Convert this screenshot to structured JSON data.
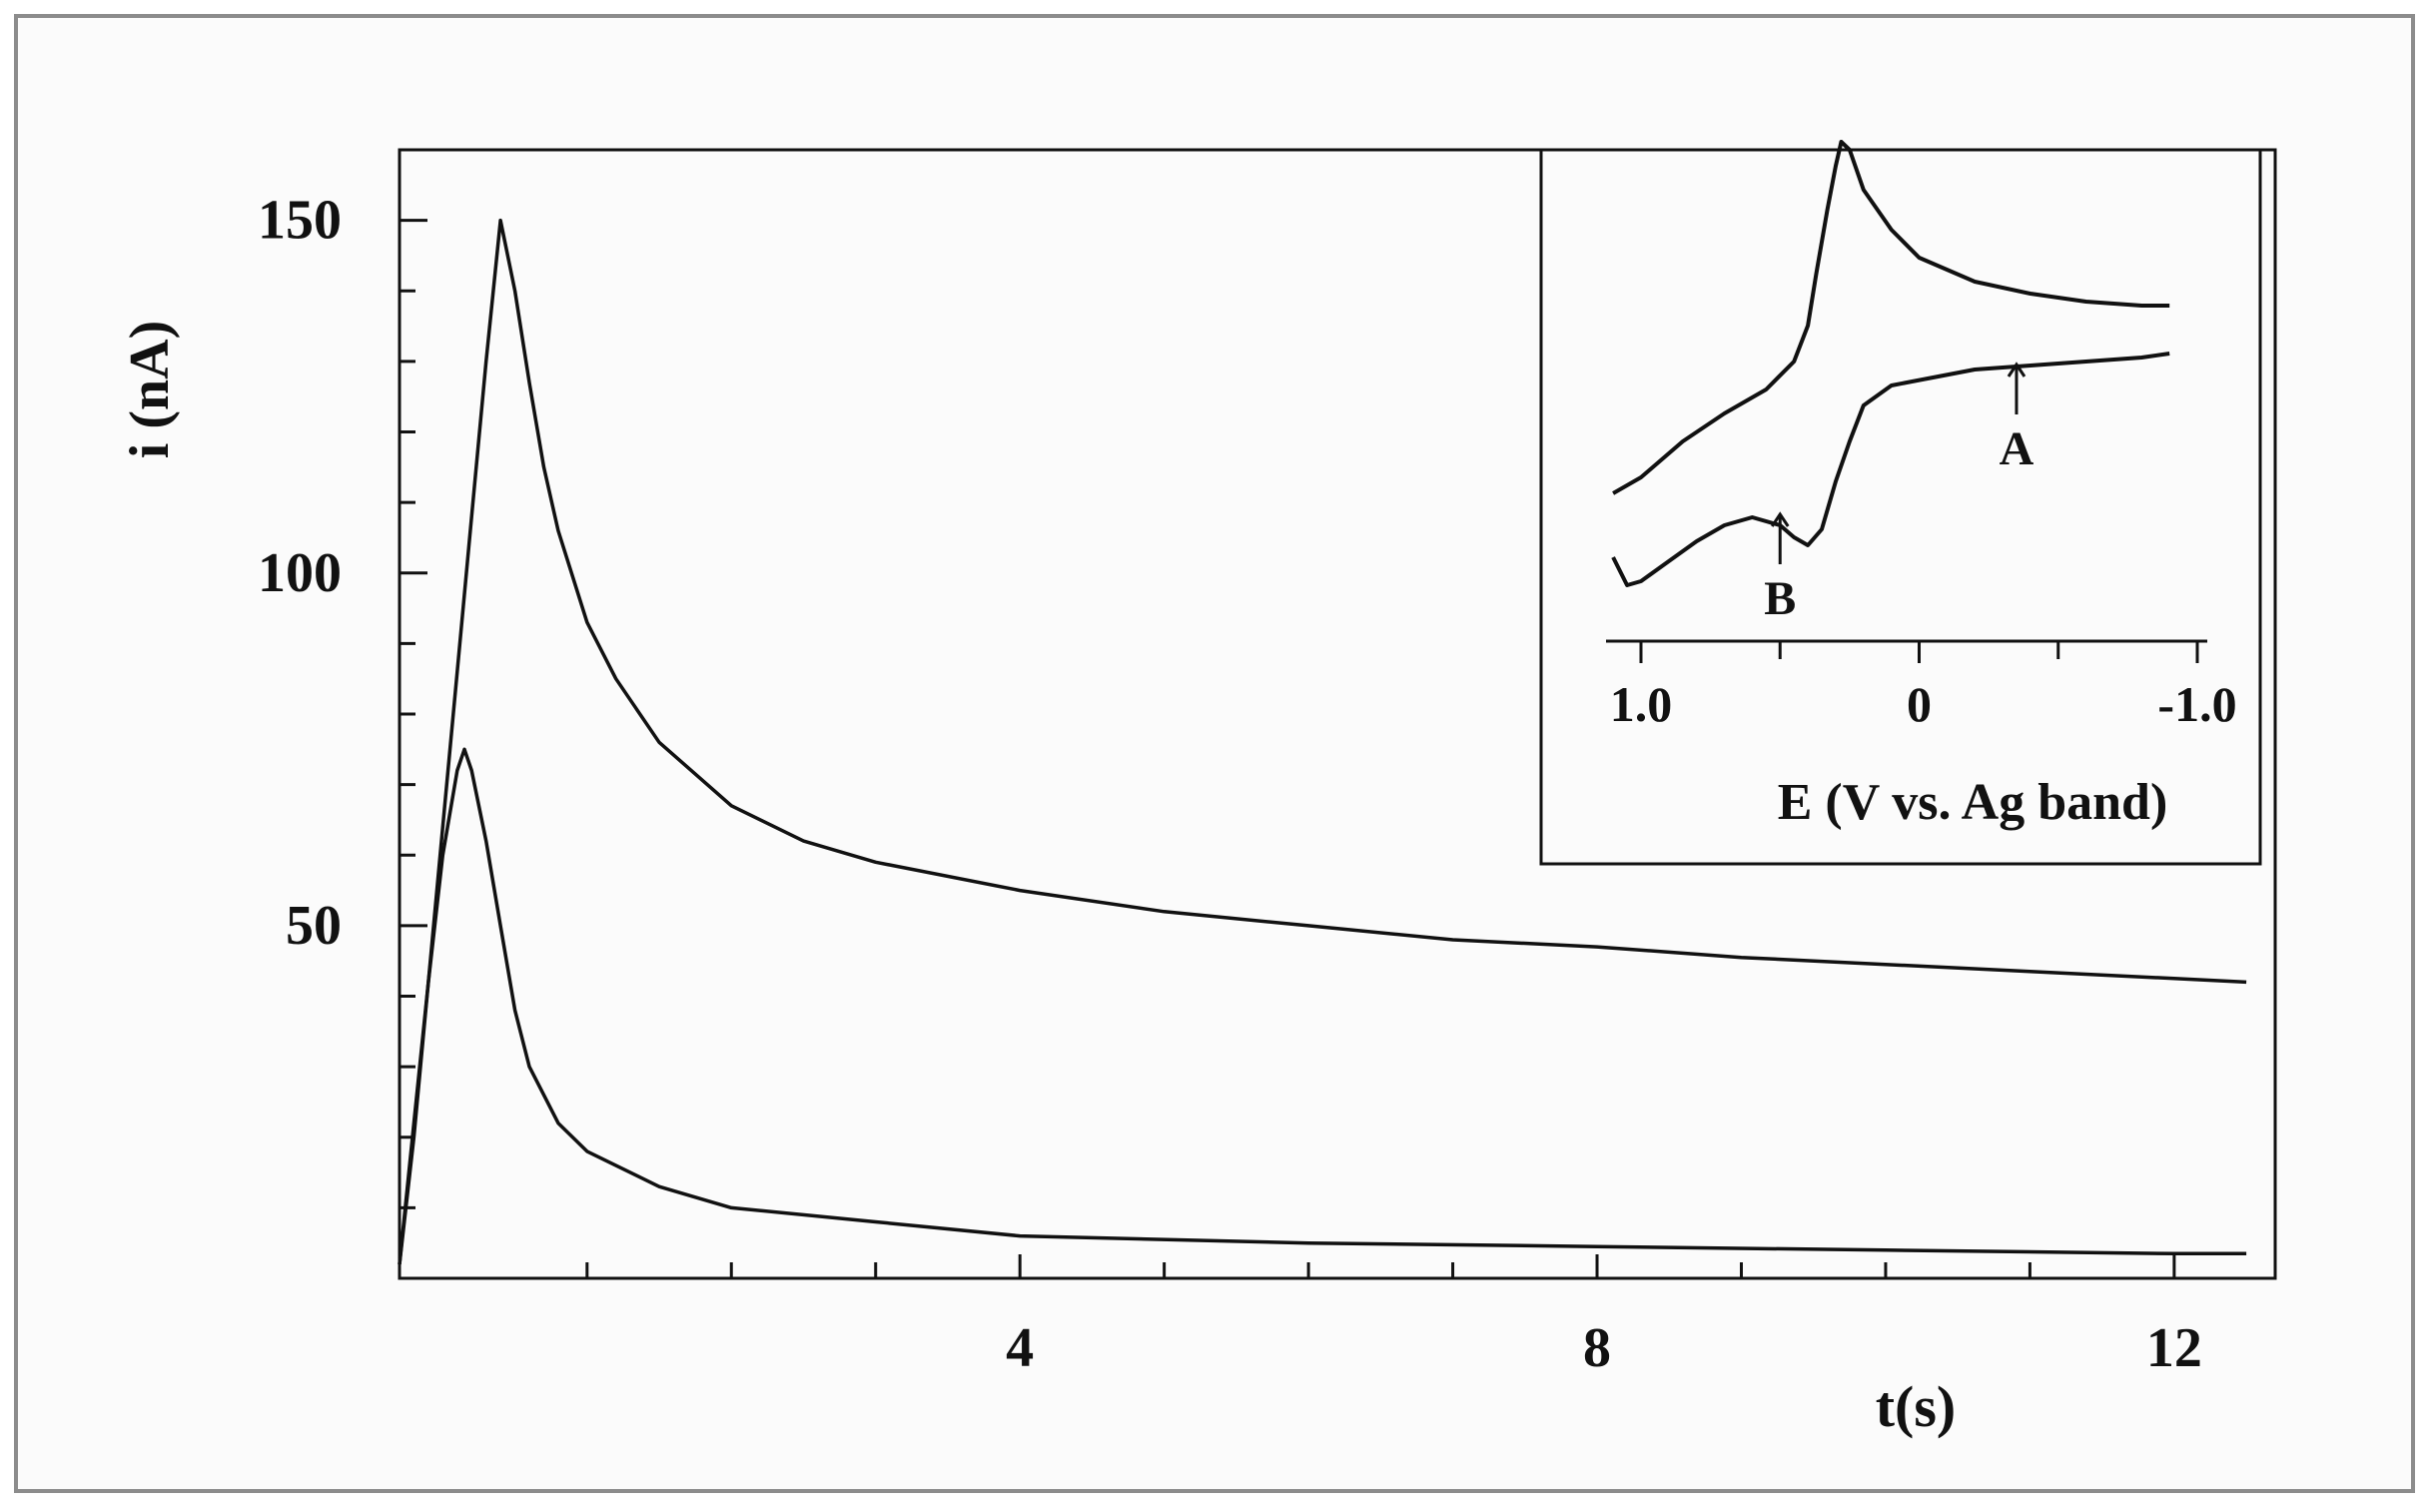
{
  "chart_data": [
    {
      "type": "line",
      "title": "",
      "xlabel": "t(s)",
      "ylabel": "i (nA)",
      "xlim": [
        -0.3,
        12.7
      ],
      "ylim": [
        0,
        160
      ],
      "x_major_ticks": [
        4,
        8,
        12
      ],
      "x_minor_ticks": [
        1,
        2,
        3,
        5,
        6,
        7,
        9,
        10,
        11
      ],
      "y_major_ticks": [
        50,
        100,
        150
      ],
      "y_minor_ticks": [
        10,
        20,
        30,
        40,
        60,
        70,
        80,
        90,
        110,
        120,
        130,
        140
      ],
      "x_tick_labels": [
        "4",
        "8",
        "12"
      ],
      "y_tick_labels": [
        "50",
        "100",
        "150"
      ],
      "grid": false,
      "series": [
        {
          "x": [
            -0.3,
            -0.2,
            -0.1,
            0.0,
            0.1,
            0.2,
            0.3,
            0.35,
            0.4,
            0.5,
            0.6,
            0.7,
            0.8,
            1.0,
            1.2,
            1.5,
            2.0,
            2.5,
            3.0,
            4.0,
            5.0,
            6.0,
            7.0,
            8.0,
            9.0,
            10.0,
            11.0,
            12.0,
            12.5
          ],
          "y": [
            2,
            20,
            42,
            64,
            86,
            108,
            130,
            140,
            150,
            140,
            127,
            115,
            106,
            93,
            85,
            76,
            67,
            62,
            59,
            55,
            52,
            50,
            48,
            47,
            45.5,
            44.5,
            43.5,
            42.5,
            42
          ]
        },
        {
          "x": [
            -0.3,
            -0.2,
            -0.1,
            0.0,
            0.1,
            0.15,
            0.2,
            0.3,
            0.4,
            0.5,
            0.6,
            0.8,
            1.0,
            1.5,
            2.0,
            3.0,
            4.0,
            6.0,
            8.0,
            10.0,
            12.0,
            12.5
          ],
          "y": [
            2,
            22,
            42,
            60,
            72,
            75,
            72,
            62,
            50,
            38,
            30,
            22,
            18,
            13,
            10,
            8,
            6,
            5,
            4.5,
            4,
            3.5,
            3.5
          ]
        }
      ]
    },
    {
      "type": "line",
      "title": "",
      "xlabel": "E (V vs. Ag band)",
      "ylabel": "",
      "xlim": [
        1.05,
        -1.0
      ],
      "x_reversed": true,
      "x_major_ticks": [
        1.0,
        0,
        -1.0
      ],
      "x_minor_ticks": [
        0.5,
        -0.5
      ],
      "x_tick_labels": [
        "1.0",
        "0",
        "-1.0"
      ],
      "grid": false,
      "annotations": [
        {
          "text": "A",
          "x": -0.35,
          "marker": "arrow-up"
        },
        {
          "text": "B",
          "x": 0.5,
          "marker": "arrow-up"
        }
      ],
      "series": [
        {
          "x": [
            1.1,
            1.0,
            0.85,
            0.7,
            0.55,
            0.45,
            0.4,
            0.37,
            0.33,
            0.3,
            0.28,
            0.25,
            0.2,
            0.1,
            0.0,
            -0.2,
            -0.4,
            -0.6,
            -0.8,
            -0.9
          ],
          "y": [
            0.3,
            0.7,
            1.6,
            2.3,
            2.9,
            3.6,
            4.5,
            5.8,
            7.4,
            8.5,
            9.1,
            8.9,
            7.9,
            6.9,
            6.2,
            5.6,
            5.3,
            5.1,
            5.0,
            5.0
          ]
        },
        {
          "x": [
            -0.9,
            -0.8,
            -0.6,
            -0.4,
            -0.2,
            -0.05,
            0.1,
            0.2,
            0.25,
            0.3,
            0.35,
            0.4,
            0.45,
            0.5,
            0.6,
            0.7,
            0.8,
            0.9,
            1.0,
            1.05,
            1.1
          ],
          "y": [
            3.8,
            3.7,
            3.6,
            3.5,
            3.4,
            3.2,
            3.0,
            2.5,
            1.6,
            0.6,
            -0.6,
            -1.0,
            -0.8,
            -0.5,
            -0.3,
            -0.5,
            -0.9,
            -1.4,
            -1.9,
            -2.0,
            -1.3
          ]
        }
      ]
    }
  ]
}
